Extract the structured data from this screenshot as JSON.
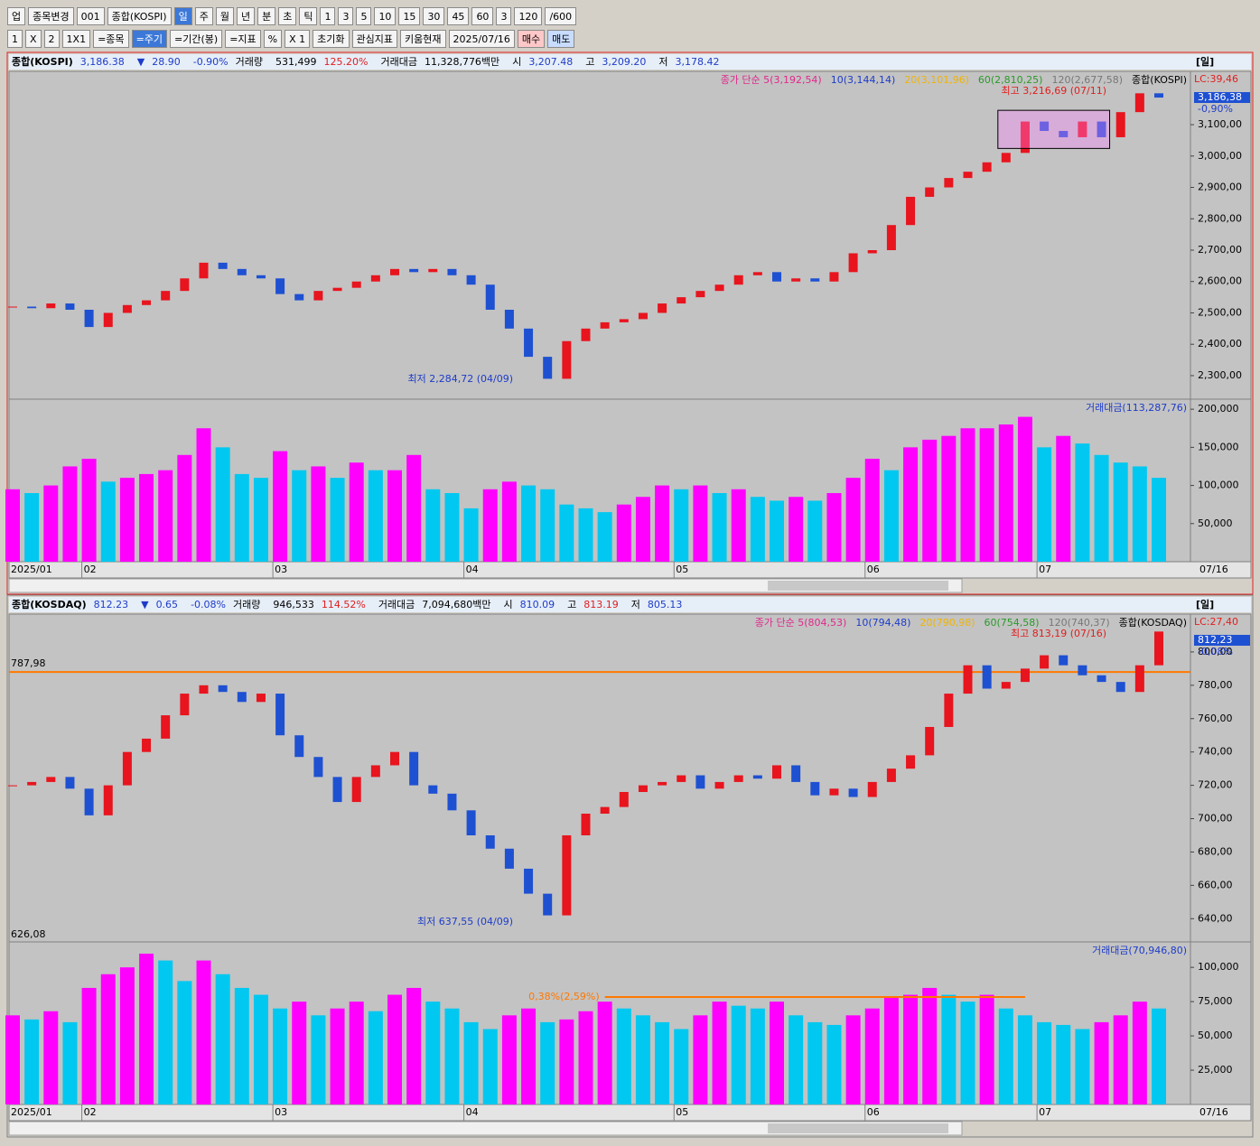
{
  "toolbar": {
    "row1": [
      "업",
      "종목변경",
      "001",
      "종합(KOSPI)",
      "일",
      "주",
      "월",
      "년",
      "분",
      "초",
      "틱",
      "1",
      "3",
      "5",
      "10",
      "15",
      "30",
      "45",
      "60",
      "3",
      "120",
      "/600"
    ],
    "row2": [
      "1",
      "X",
      "2",
      "1X1",
      "=종목",
      "=주기",
      "=기간(봉)",
      "=지표",
      "%",
      "X 1",
      "초기화",
      "관심지표",
      "키움현재",
      "2025/07/16",
      "매수",
      "매도"
    ]
  },
  "panels": [
    {
      "header": [
        {
          "text": "종합(KOSPI)",
          "color": "#000000"
        },
        {
          "text": "3,186.38",
          "color": "#1e3cc8"
        },
        {
          "text": "▼",
          "color": "#1e3cc8"
        },
        {
          "text": "28.90",
          "color": "#1e3cc8"
        },
        {
          "text": "-0.90%",
          "color": "#1e3cc8"
        },
        {
          "text": "거래량",
          "color": "#000000"
        },
        {
          "text": "531,499",
          "color": "#000000"
        },
        {
          "text": "125.20%",
          "color": "#e01e1e"
        },
        {
          "text": "거래대금",
          "color": "#000000"
        },
        {
          "text": "11,328,776백만",
          "color": "#000000"
        },
        {
          "text": "시",
          "color": "#000000"
        },
        {
          "text": "3,207.48",
          "color": "#1e3cc8"
        },
        {
          "text": "고",
          "color": "#000000"
        },
        {
          "text": "3,209.20",
          "color": "#1e3cc8"
        },
        {
          "text": "저",
          "color": "#000000"
        },
        {
          "text": "3,178.42",
          "color": "#1e3cc8"
        }
      ],
      "period": "[일]",
      "legend": [
        {
          "text": "종가 단순 5(3,192,54)",
          "color": "#e0288c"
        },
        {
          "text": "10(3,144,14)",
          "color": "#1e3cc8"
        },
        {
          "text": "20(3,101,96)",
          "color": "#f0b400"
        },
        {
          "text": "60(2,810,25)",
          "color": "#2a9a2a"
        },
        {
          "text": "120(2,677,58)",
          "color": "#777777"
        },
        {
          "text": "종합(KOSPI)",
          "color": "#000000"
        }
      ],
      "high_note": "최고 3,216,69 (07/11)",
      "low_note": "최저 2,284,72 (04/09)",
      "right_labels": [
        "LC:39,46",
        "3,186,38",
        "-0,90%"
      ],
      "price": {
        "type": "candlestick",
        "up_color": "#e8141e",
        "down_color": "#1e50d2",
        "ylim": [
          2225,
          3270
        ],
        "yticks": [
          {
            "value": 2300,
            "label": "2,300,00"
          },
          {
            "value": 2400,
            "label": "2,400,00"
          },
          {
            "value": 2500,
            "label": "2,500,00"
          },
          {
            "value": 2600,
            "label": "2,600,00"
          },
          {
            "value": 2700,
            "label": "2,700,00"
          },
          {
            "value": 2800,
            "label": "2,800,00"
          },
          {
            "value": 2900,
            "label": "2,900,00"
          },
          {
            "value": 3000,
            "label": "3,000,00"
          },
          {
            "value": 3100,
            "label": "3,100,00"
          }
        ],
        "values": [
          2520,
          2515,
          2530,
          2510,
          2455,
          2500,
          2525,
          2540,
          2570,
          2610,
          2660,
          2640,
          2620,
          2610,
          2560,
          2540,
          2570,
          2580,
          2600,
          2620,
          2640,
          2630,
          2640,
          2620,
          2590,
          2510,
          2450,
          2360,
          2290,
          2410,
          2450,
          2470,
          2480,
          2500,
          2530,
          2550,
          2570,
          2590,
          2620,
          2630,
          2600,
          2610,
          2600,
          2630,
          2690,
          2700,
          2780,
          2870,
          2900,
          2930,
          2950,
          2980,
          3010,
          3110,
          3080,
          3060,
          3110,
          3060,
          3140,
          3200,
          3186.38
        ]
      },
      "volume": {
        "type": "bar",
        "legend": "거래대금(113,287,76)",
        "up_color": "#ff00ff",
        "down_color": "#00c8f0",
        "ylim": [
          0,
          212000
        ],
        "yticks": [
          {
            "value": 50000,
            "label": "50,000"
          },
          {
            "value": 100000,
            "label": "100,000"
          },
          {
            "value": 150000,
            "label": "150,000"
          },
          {
            "value": 200000,
            "label": "200,000"
          }
        ],
        "values": [
          95000,
          90000,
          100000,
          125000,
          135000,
          105000,
          110000,
          115000,
          120000,
          140000,
          175000,
          150000,
          115000,
          110000,
          145000,
          120000,
          125000,
          110000,
          130000,
          120000,
          120000,
          140000,
          95000,
          90000,
          70000,
          95000,
          105000,
          100000,
          95000,
          75000,
          70000,
          65000,
          75000,
          85000,
          100000,
          95000,
          100000,
          90000,
          95000,
          85000,
          80000,
          85000,
          80000,
          90000,
          110000,
          135000,
          120000,
          150000,
          160000,
          165000,
          175000,
          175000,
          180000,
          190000,
          150000,
          165000,
          155000,
          140000,
          130000,
          125000,
          110000
        ]
      },
      "x_ticks": [
        {
          "value": 0,
          "label": "2025/01"
        },
        {
          "value": 4,
          "label": "02"
        },
        {
          "value": 14,
          "label": "03"
        },
        {
          "value": 24,
          "label": "04"
        },
        {
          "value": 35,
          "label": "05"
        },
        {
          "value": 45,
          "label": "06"
        },
        {
          "value": 54,
          "label": "07"
        }
      ],
      "last_date": "07/16"
    },
    {
      "header": [
        {
          "text": "종합(KOSDAQ)",
          "color": "#000000"
        },
        {
          "text": "812.23",
          "color": "#1e3cc8"
        },
        {
          "text": "▼",
          "color": "#1e3cc8"
        },
        {
          "text": "0.65",
          "color": "#1e3cc8"
        },
        {
          "text": "-0.08%",
          "color": "#1e3cc8"
        },
        {
          "text": "거래량",
          "color": "#000000"
        },
        {
          "text": "946,533",
          "color": "#000000"
        },
        {
          "text": "114.52%",
          "color": "#e01e1e"
        },
        {
          "text": "거래대금",
          "color": "#000000"
        },
        {
          "text": "7,094,680백만",
          "color": "#000000"
        },
        {
          "text": "시",
          "color": "#000000"
        },
        {
          "text": "810.09",
          "color": "#1e3cc8"
        },
        {
          "text": "고",
          "color": "#000000"
        },
        {
          "text": "813.19",
          "color": "#e01e1e"
        },
        {
          "text": "저",
          "color": "#000000"
        },
        {
          "text": "805.13",
          "color": "#1e3cc8"
        }
      ],
      "period": "[일]",
      "legend": [
        {
          "text": "종가 단순 5(804,53)",
          "color": "#e0288c"
        },
        {
          "text": "10(794,48)",
          "color": "#1e3cc8"
        },
        {
          "text": "20(790,98)",
          "color": "#f0b400"
        },
        {
          "text": "60(754,58)",
          "color": "#2a9a2a"
        },
        {
          "text": "120(740,37)",
          "color": "#777777"
        },
        {
          "text": "종합(KOSDAQ)",
          "color": "#000000"
        }
      ],
      "high_note": "최고 813,19 (07/16)",
      "low_note": "최저 637,55 (04/09)",
      "right_labels": [
        "LC:27,40",
        "812,23",
        "-0,08%"
      ],
      "hline": {
        "value": 787.98,
        "label": "787,98",
        "color": "#ff7800"
      },
      "low_label": "626,08",
      "price": {
        "type": "candlestick",
        "up_color": "#e8141e",
        "down_color": "#1e50d2",
        "ylim": [
          626.08,
          822.7
        ],
        "yticks": [
          {
            "value": 640,
            "label": "640,00"
          },
          {
            "value": 660,
            "label": "660,00"
          },
          {
            "value": 680,
            "label": "680,00"
          },
          {
            "value": 700,
            "label": "700,00"
          },
          {
            "value": 720,
            "label": "720,00"
          },
          {
            "value": 740,
            "label": "740,00"
          },
          {
            "value": 760,
            "label": "760,00"
          },
          {
            "value": 780,
            "label": "780,00"
          },
          {
            "value": 800,
            "label": "800,00"
          }
        ],
        "values": [
          720,
          722,
          725,
          718,
          702,
          720,
          740,
          748,
          762,
          775,
          780,
          776,
          770,
          775,
          750,
          737,
          725,
          710,
          725,
          732,
          740,
          720,
          715,
          705,
          690,
          682,
          670,
          655,
          642,
          690,
          703,
          707,
          716,
          720,
          722,
          726,
          718,
          722,
          726,
          724,
          732,
          722,
          714,
          718,
          713,
          722,
          730,
          738,
          755,
          775,
          792,
          778,
          782,
          790,
          798,
          792,
          786,
          782,
          776,
          792,
          812.23
        ]
      },
      "volume": {
        "type": "bar",
        "legend": "거래대금(70,946,80)",
        "note": "0,38%(2,59%)",
        "up_color": "#ff00ff",
        "down_color": "#00c8f0",
        "ylim": [
          0,
          117900
        ],
        "yticks": [
          {
            "value": 25000,
            "label": "25,000"
          },
          {
            "value": 50000,
            "label": "50,000"
          },
          {
            "value": 75000,
            "label": "75,000"
          },
          {
            "value": 100000,
            "label": "100,000"
          }
        ],
        "values": [
          65000,
          62000,
          68000,
          60000,
          85000,
          95000,
          100000,
          110000,
          105000,
          90000,
          105000,
          95000,
          85000,
          80000,
          70000,
          75000,
          65000,
          70000,
          75000,
          68000,
          80000,
          85000,
          75000,
          70000,
          60000,
          55000,
          65000,
          70000,
          60000,
          62000,
          68000,
          75000,
          70000,
          65000,
          60000,
          55000,
          65000,
          75000,
          72000,
          70000,
          75000,
          65000,
          60000,
          58000,
          65000,
          70000,
          78000,
          80000,
          85000,
          80000,
          75000,
          80000,
          70000,
          65000,
          60000,
          58000,
          55000,
          60000,
          65000,
          75000,
          70000
        ]
      },
      "x_ticks": [
        {
          "value": 0,
          "label": "2025/01"
        },
        {
          "value": 4,
          "label": "02"
        },
        {
          "value": 14,
          "label": "03"
        },
        {
          "value": 24,
          "label": "04"
        },
        {
          "value": 35,
          "label": "05"
        },
        {
          "value": 45,
          "label": "06"
        },
        {
          "value": 54,
          "label": "07"
        }
      ],
      "last_date": "07/16"
    }
  ]
}
